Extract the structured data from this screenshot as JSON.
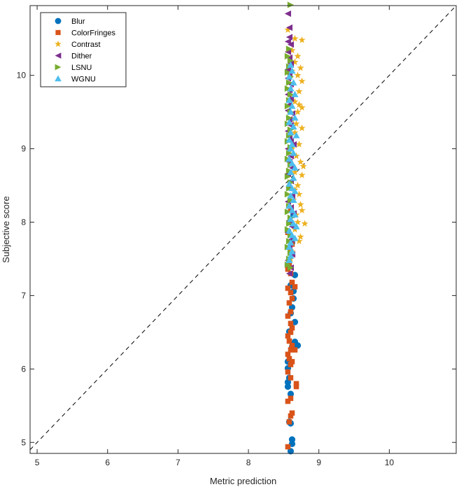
{
  "chart_data": {
    "type": "scatter",
    "xlabel": "Metric prediction",
    "ylabel": "Subjective score",
    "xlim": [
      4.9,
      10.95
    ],
    "ylim": [
      4.85,
      10.95
    ],
    "xticks": [
      5,
      6,
      7,
      8,
      9,
      10
    ],
    "yticks": [
      5,
      6,
      7,
      8,
      9,
      10
    ],
    "grid": false,
    "legend_position": "top-left",
    "reference_line": {
      "style": "dashed",
      "from": [
        4.9,
        4.9
      ],
      "to": [
        10.95,
        10.95
      ]
    },
    "series": [
      {
        "name": "Blur",
        "marker": "circle",
        "color": "#0072BD",
        "points": [
          [
            8.6,
            4.88
          ],
          [
            8.62,
            4.98
          ],
          [
            8.62,
            5.04
          ],
          [
            8.6,
            5.26
          ],
          [
            8.58,
            5.28
          ],
          [
            8.6,
            5.66
          ],
          [
            8.56,
            5.76
          ],
          [
            8.56,
            5.82
          ],
          [
            8.58,
            5.88
          ],
          [
            8.56,
            6.01
          ],
          [
            8.56,
            6.1
          ],
          [
            8.62,
            6.3
          ],
          [
            8.64,
            6.35
          ],
          [
            8.66,
            6.37
          ],
          [
            8.7,
            6.32
          ],
          [
            8.66,
            6.64
          ],
          [
            8.58,
            6.51
          ],
          [
            8.6,
            6.76
          ],
          [
            8.62,
            6.84
          ],
          [
            8.64,
            6.96
          ],
          [
            8.64,
            7.06
          ],
          [
            8.6,
            7.14
          ],
          [
            8.66,
            7.28
          ],
          [
            8.56,
            7.42
          ],
          [
            8.62,
            7.72
          ],
          [
            8.6,
            8.0
          ],
          [
            8.64,
            8.1
          ]
        ]
      },
      {
        "name": "ColorFringes",
        "marker": "square",
        "color": "#D95319",
        "points": [
          [
            8.56,
            4.94
          ],
          [
            8.58,
            5.28
          ],
          [
            8.6,
            5.36
          ],
          [
            8.62,
            5.4
          ],
          [
            8.56,
            5.56
          ],
          [
            8.6,
            5.6
          ],
          [
            8.68,
            5.76
          ],
          [
            8.68,
            5.8
          ],
          [
            8.6,
            5.88
          ],
          [
            8.56,
            5.96
          ],
          [
            8.6,
            6.06
          ],
          [
            8.62,
            6.1
          ],
          [
            8.58,
            6.14
          ],
          [
            8.56,
            6.2
          ],
          [
            8.6,
            6.26
          ],
          [
            8.62,
            6.32
          ],
          [
            8.58,
            6.38
          ],
          [
            8.56,
            6.45
          ],
          [
            8.6,
            6.5
          ],
          [
            8.62,
            6.56
          ],
          [
            8.6,
            6.62
          ],
          [
            8.66,
            6.26
          ],
          [
            8.56,
            6.72
          ],
          [
            8.6,
            6.78
          ],
          [
            8.58,
            6.9
          ],
          [
            8.62,
            6.96
          ],
          [
            8.6,
            7.04
          ],
          [
            8.56,
            7.1
          ],
          [
            8.66,
            7.12
          ],
          [
            8.62,
            7.18
          ],
          [
            8.6,
            7.3
          ],
          [
            8.56,
            7.36
          ],
          [
            8.58,
            7.44
          ],
          [
            8.6,
            7.6
          ],
          [
            8.62,
            7.7
          ],
          [
            8.56,
            7.86
          ],
          [
            8.6,
            8.16
          ]
        ]
      },
      {
        "name": "Contrast",
        "marker": "star",
        "color": "#EDB120",
        "points": [
          [
            8.56,
            10.62
          ],
          [
            8.66,
            10.5
          ],
          [
            8.76,
            10.48
          ],
          [
            8.62,
            10.34
          ],
          [
            8.7,
            10.26
          ],
          [
            8.66,
            10.18
          ],
          [
            8.74,
            10.1
          ],
          [
            8.62,
            10.06
          ],
          [
            8.7,
            10.0
          ],
          [
            8.76,
            9.92
          ],
          [
            8.72,
            9.78
          ],
          [
            8.62,
            9.7
          ],
          [
            8.66,
            9.64
          ],
          [
            8.72,
            9.6
          ],
          [
            8.76,
            9.56
          ],
          [
            8.7,
            9.5
          ],
          [
            8.62,
            9.4
          ],
          [
            8.68,
            9.34
          ],
          [
            8.76,
            9.28
          ],
          [
            8.66,
            9.22
          ],
          [
            8.72,
            9.06
          ],
          [
            8.62,
            9.0
          ],
          [
            8.68,
            8.9
          ],
          [
            8.74,
            8.82
          ],
          [
            8.78,
            8.76
          ],
          [
            8.66,
            8.68
          ],
          [
            8.76,
            8.64
          ],
          [
            8.62,
            8.56
          ],
          [
            8.7,
            8.5
          ],
          [
            8.66,
            8.44
          ],
          [
            8.72,
            8.38
          ],
          [
            8.64,
            8.3
          ],
          [
            8.74,
            8.24
          ],
          [
            8.76,
            8.16
          ],
          [
            8.68,
            8.1
          ],
          [
            8.8,
            7.98
          ],
          [
            8.7,
            8.0
          ],
          [
            8.66,
            7.9
          ],
          [
            8.74,
            7.8
          ],
          [
            8.72,
            7.74
          ],
          [
            8.62,
            7.6
          ],
          [
            8.6,
            7.5
          ]
        ]
      },
      {
        "name": "Dither",
        "marker": "triangle-left",
        "color": "#7E2F8E",
        "points": [
          [
            8.56,
            10.84
          ],
          [
            8.58,
            10.65
          ],
          [
            8.58,
            10.52
          ],
          [
            8.56,
            10.46
          ],
          [
            8.6,
            10.42
          ],
          [
            8.56,
            10.32
          ],
          [
            8.58,
            10.24
          ],
          [
            8.6,
            10.16
          ],
          [
            8.56,
            10.08
          ],
          [
            8.58,
            10.02
          ],
          [
            8.56,
            9.96
          ],
          [
            8.6,
            9.88
          ],
          [
            8.58,
            9.8
          ],
          [
            8.56,
            9.74
          ],
          [
            8.6,
            9.68
          ],
          [
            8.58,
            9.6
          ],
          [
            8.56,
            9.52
          ],
          [
            8.62,
            9.48
          ],
          [
            8.58,
            9.4
          ],
          [
            8.6,
            9.32
          ],
          [
            8.56,
            9.24
          ],
          [
            8.58,
            9.16
          ],
          [
            8.6,
            9.1
          ],
          [
            8.64,
            9.06
          ],
          [
            8.56,
            9.0
          ],
          [
            8.6,
            8.9
          ],
          [
            8.58,
            8.82
          ],
          [
            8.62,
            8.74
          ],
          [
            8.56,
            8.66
          ],
          [
            8.6,
            8.56
          ],
          [
            8.58,
            8.46
          ],
          [
            8.62,
            8.36
          ],
          [
            8.56,
            8.28
          ],
          [
            8.6,
            8.2
          ],
          [
            8.64,
            8.12
          ],
          [
            8.58,
            8.02
          ],
          [
            8.62,
            7.94
          ],
          [
            8.56,
            7.86
          ],
          [
            8.6,
            7.76
          ],
          [
            8.58,
            7.66
          ],
          [
            8.62,
            7.56
          ],
          [
            8.56,
            7.48
          ],
          [
            8.6,
            7.38
          ],
          [
            8.58,
            7.3
          ]
        ]
      },
      {
        "name": "LSNU",
        "marker": "triangle-right",
        "color": "#77AC30",
        "points": [
          [
            8.6,
            10.96
          ],
          [
            8.58,
            10.36
          ],
          [
            8.56,
            10.26
          ],
          [
            8.6,
            10.2
          ],
          [
            8.58,
            10.12
          ],
          [
            8.56,
            10.04
          ],
          [
            8.6,
            9.98
          ],
          [
            8.58,
            9.9
          ],
          [
            8.56,
            9.82
          ],
          [
            8.6,
            9.74
          ],
          [
            8.58,
            9.66
          ],
          [
            8.56,
            9.58
          ],
          [
            8.6,
            9.5
          ],
          [
            8.58,
            9.42
          ],
          [
            8.56,
            9.34
          ],
          [
            8.6,
            9.26
          ],
          [
            8.58,
            9.18
          ],
          [
            8.56,
            9.1
          ],
          [
            8.6,
            9.02
          ],
          [
            8.58,
            8.94
          ],
          [
            8.56,
            8.86
          ],
          [
            8.6,
            8.78
          ],
          [
            8.58,
            8.7
          ],
          [
            8.56,
            8.62
          ],
          [
            8.6,
            8.54
          ],
          [
            8.58,
            8.46
          ],
          [
            8.56,
            8.38
          ],
          [
            8.6,
            8.3
          ],
          [
            8.58,
            8.22
          ],
          [
            8.56,
            8.14
          ],
          [
            8.6,
            8.06
          ],
          [
            8.58,
            7.98
          ],
          [
            8.56,
            7.9
          ],
          [
            8.6,
            7.82
          ],
          [
            8.58,
            7.74
          ],
          [
            8.56,
            7.66
          ],
          [
            8.6,
            7.58
          ],
          [
            8.58,
            7.5
          ],
          [
            8.56,
            7.42
          ],
          [
            8.6,
            7.38
          ]
        ]
      },
      {
        "name": "WGNU",
        "marker": "triangle-up",
        "color": "#4DBEEE",
        "points": [
          [
            8.6,
            10.14
          ],
          [
            8.62,
            10.06
          ],
          [
            8.58,
            9.98
          ],
          [
            8.64,
            9.9
          ],
          [
            8.6,
            9.82
          ],
          [
            8.66,
            9.74
          ],
          [
            8.58,
            9.66
          ],
          [
            8.62,
            9.58
          ],
          [
            8.6,
            9.5
          ],
          [
            8.66,
            9.42
          ],
          [
            8.58,
            9.36
          ],
          [
            8.64,
            9.3
          ],
          [
            8.6,
            9.22
          ],
          [
            8.68,
            9.18
          ],
          [
            8.58,
            9.12
          ],
          [
            8.62,
            9.06
          ],
          [
            8.6,
            9.0
          ],
          [
            8.64,
            8.94
          ],
          [
            8.58,
            8.86
          ],
          [
            8.62,
            8.8
          ],
          [
            8.66,
            8.74
          ],
          [
            8.6,
            8.68
          ],
          [
            8.64,
            8.6
          ],
          [
            8.58,
            8.52
          ],
          [
            8.62,
            8.46
          ],
          [
            8.66,
            8.42
          ],
          [
            8.6,
            8.36
          ],
          [
            8.64,
            8.3
          ],
          [
            8.58,
            8.22
          ],
          [
            8.62,
            8.16
          ],
          [
            8.66,
            8.1
          ],
          [
            8.6,
            8.04
          ],
          [
            8.64,
            7.98
          ],
          [
            8.68,
            7.94
          ],
          [
            8.58,
            7.88
          ],
          [
            8.62,
            7.82
          ],
          [
            8.66,
            7.78
          ],
          [
            8.6,
            7.72
          ],
          [
            8.58,
            7.66
          ],
          [
            8.62,
            7.6
          ],
          [
            8.6,
            7.54
          ],
          [
            8.58,
            7.48
          ]
        ]
      }
    ]
  }
}
